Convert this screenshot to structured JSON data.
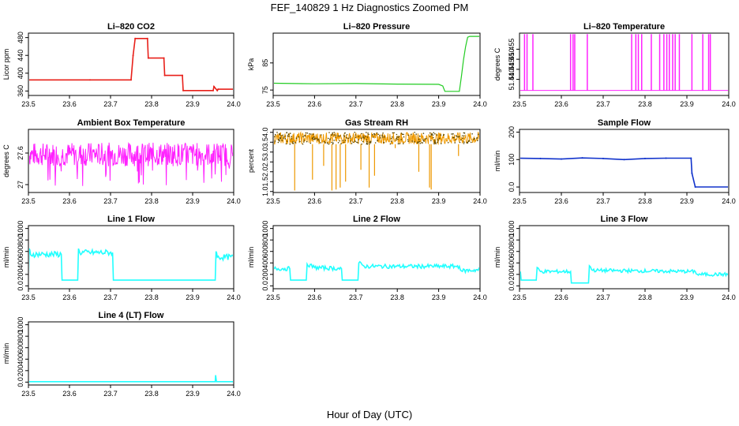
{
  "figure": {
    "title": "FEF_140829  1 Hz Diagnostics Zoomed PM",
    "xlabel": "Hour of Day (UTC)"
  },
  "colors": {
    "co2": "#e8201a",
    "pressure": "#22cc22",
    "temperature": "#ff22ff",
    "ambient": "#ff22ff",
    "rh": "#ee9900",
    "rh_points": "#554400",
    "sample_flow": "#1133cc",
    "line_flow": "#22ffff"
  },
  "chart_data": [
    {
      "id": "co2",
      "type": "line",
      "title": "Li–820 CO2",
      "ylabel": "Licor ppm",
      "xlim": [
        23.5,
        24.0
      ],
      "ylim": [
        350,
        490
      ],
      "xticks": [
        23.5,
        23.6,
        23.7,
        23.8,
        23.9,
        24.0
      ],
      "yticks": [
        360,
        400,
        440,
        480
      ],
      "color_key": "co2",
      "series": [
        {
          "x": [
            23.5,
            23.65,
            23.75,
            23.755,
            23.76,
            23.79,
            23.792,
            23.83,
            23.832,
            23.875,
            23.877,
            23.95,
            23.952,
            23.96,
            23.962,
            24.0
          ],
          "y": [
            385,
            385,
            385,
            440,
            478,
            478,
            434,
            434,
            395,
            395,
            361,
            361,
            370,
            361,
            364,
            364
          ]
        }
      ]
    },
    {
      "id": "pressure",
      "type": "line",
      "title": "Li–820 Pressure",
      "ylabel": "kPa",
      "xlim": [
        23.5,
        24.0
      ],
      "ylim": [
        73,
        96
      ],
      "xticks": [
        23.5,
        23.6,
        23.7,
        23.8,
        23.9,
        24.0
      ],
      "yticks": [
        75,
        85
      ],
      "color_key": "pressure",
      "series": [
        {
          "x": [
            23.5,
            23.6,
            23.7,
            23.8,
            23.9,
            23.91,
            23.915,
            23.95,
            23.955,
            23.96,
            23.965,
            23.97,
            23.975,
            24.0
          ],
          "y": [
            77.5,
            77.3,
            77.4,
            77.2,
            77.1,
            76.5,
            74.5,
            74.5,
            80,
            86,
            91,
            94.5,
            94.8,
            94.8
          ]
        }
      ]
    },
    {
      "id": "temperature",
      "type": "line",
      "title": "Li–820 Temperature",
      "ylabel": "degrees C",
      "xlim": [
        23.5,
        24.0
      ],
      "ylim": [
        51.432,
        51.463
      ],
      "xticks": [
        23.5,
        23.6,
        23.7,
        23.8,
        23.9,
        24.0
      ],
      "yticks": [
        51.44,
        51.445,
        51.45,
        51.455
      ],
      "color_key": "temperature",
      "baseline": 51.4345,
      "spike_top": 51.4625,
      "spikes": [
        23.512,
        23.518,
        23.532,
        23.622,
        23.628,
        23.632,
        23.662,
        23.768,
        23.778,
        23.784,
        23.792,
        23.815,
        23.835,
        23.845,
        23.852,
        23.858,
        23.866,
        23.872,
        23.882,
        23.912,
        23.938,
        23.952,
        23.956
      ]
    },
    {
      "id": "ambient",
      "type": "line",
      "title": "Ambient Box Temperature",
      "ylabel": "degrees C",
      "xlim": [
        23.5,
        24.0
      ],
      "ylim": [
        26.85,
        28.05
      ],
      "xticks": [
        23.5,
        23.6,
        23.7,
        23.8,
        23.9,
        24.0
      ],
      "yticks": [
        27.0,
        27.6
      ],
      "color_key": "ambient",
      "series": [
        {
          "x": [
            23.5,
            24.0
          ],
          "y": [
            27.55,
            27.55
          ]
        }
      ],
      "band": [
        27.35,
        27.8
      ],
      "dips_to": 26.95
    },
    {
      "id": "rh",
      "type": "line",
      "title": "Gas Stream RH",
      "ylabel": "percent",
      "xlim": [
        23.5,
        24.0
      ],
      "ylim": [
        0.95,
        4.15
      ],
      "xticks": [
        23.5,
        23.6,
        23.7,
        23.8,
        23.9,
        24.0
      ],
      "yticks": [
        1.0,
        1.5,
        2.0,
        2.5,
        3.0,
        3.5,
        4.0
      ],
      "color_key": "rh",
      "series": [
        {
          "x": [
            23.5,
            24.0
          ],
          "y": [
            3.7,
            3.7
          ]
        }
      ],
      "band": [
        3.4,
        4.0
      ],
      "dips": [
        [
          23.552,
          1.05
        ],
        [
          23.595,
          1.6
        ],
        [
          23.622,
          2.3
        ],
        [
          23.642,
          1.05
        ],
        [
          23.652,
          1.1
        ],
        [
          23.662,
          1.2
        ],
        [
          23.675,
          1.5
        ],
        [
          23.712,
          2.1
        ],
        [
          23.732,
          1.2
        ],
        [
          23.745,
          1.8
        ],
        [
          23.795,
          3.2
        ],
        [
          23.852,
          2.0
        ],
        [
          23.878,
          1.2
        ],
        [
          23.882,
          1.1
        ],
        [
          23.948,
          2.8
        ]
      ]
    },
    {
      "id": "sample_flow",
      "type": "line",
      "title": "Sample Flow",
      "ylabel": "ml/min",
      "xlim": [
        23.5,
        24.0
      ],
      "ylim": [
        -20,
        210
      ],
      "xticks": [
        23.5,
        23.6,
        23.7,
        23.8,
        23.9,
        24.0
      ],
      "yticks": [
        0,
        100,
        200
      ],
      "color_key": "sample_flow",
      "series": [
        {
          "x": [
            23.5,
            23.55,
            23.6,
            23.65,
            23.7,
            23.75,
            23.8,
            23.85,
            23.91,
            23.912,
            23.92,
            24.0
          ],
          "y": [
            105,
            104,
            102,
            106,
            104,
            100,
            104,
            105,
            105,
            50,
            0,
            0
          ]
        }
      ]
    },
    {
      "id": "line1",
      "type": "line",
      "title": "Line 1 Flow",
      "ylabel": "ml/min",
      "xlim": [
        23.5,
        24.0
      ],
      "ylim": [
        -50,
        1050
      ],
      "xticks": [
        23.5,
        23.6,
        23.7,
        23.8,
        23.9,
        24.0
      ],
      "yticks": [
        0,
        200,
        400,
        600,
        800,
        1000
      ],
      "color_key": "line_flow",
      "series": [
        {
          "x": [
            23.5,
            23.502,
            23.505,
            23.58,
            23.582,
            23.62,
            23.622,
            23.625,
            23.705,
            23.707,
            23.955,
            23.957,
            23.96,
            24.0
          ],
          "y": [
            100,
            650,
            550,
            550,
            100,
            100,
            650,
            580,
            580,
            100,
            100,
            600,
            500,
            500
          ]
        }
      ],
      "noise_on_high": 50
    },
    {
      "id": "line2",
      "type": "line",
      "title": "Line 2 Flow",
      "ylabel": "ml/min",
      "xlim": [
        23.5,
        24.0
      ],
      "ylim": [
        -50,
        1050
      ],
      "xticks": [
        23.5,
        23.6,
        23.7,
        23.8,
        23.9,
        24.0
      ],
      "yticks": [
        0,
        200,
        400,
        600,
        800,
        1000
      ],
      "color_key": "line_flow",
      "series": [
        {
          "x": [
            23.5,
            23.54,
            23.542,
            23.58,
            23.582,
            23.6,
            23.665,
            23.667,
            23.705,
            23.707,
            23.72,
            23.95,
            23.955,
            24.0
          ],
          "y": [
            300,
            300,
            100,
            100,
            380,
            320,
            300,
            100,
            100,
            400,
            340,
            340,
            260,
            280
          ]
        }
      ],
      "noise_on_high": 35
    },
    {
      "id": "line3",
      "type": "line",
      "title": "Line 3 Flow",
      "ylabel": "ml/min",
      "xlim": [
        23.5,
        24.0
      ],
      "ylim": [
        -50,
        1050
      ],
      "xticks": [
        23.5,
        23.6,
        23.7,
        23.8,
        23.9,
        24.0
      ],
      "yticks": [
        0,
        200,
        400,
        600,
        800,
        1000
      ],
      "color_key": "line_flow",
      "series": [
        {
          "x": [
            23.5,
            23.502,
            23.504,
            23.54,
            23.542,
            23.55,
            23.622,
            23.624,
            23.665,
            23.667,
            23.675,
            23.92,
            23.925,
            24.0
          ],
          "y": [
            100,
            250,
            100,
            100,
            320,
            250,
            250,
            50,
            50,
            350,
            270,
            250,
            200,
            200
          ]
        }
      ],
      "noise_on_high": 30
    },
    {
      "id": "line4",
      "type": "line",
      "title": "Line 4 (LT) Flow",
      "ylabel": "ml/min",
      "xlim": [
        23.5,
        24.0
      ],
      "ylim": [
        -50,
        1050
      ],
      "xticks": [
        23.5,
        23.6,
        23.7,
        23.8,
        23.9,
        24.0
      ],
      "yticks": [
        0,
        200,
        400,
        600,
        800,
        1000
      ],
      "color_key": "line_flow",
      "series": [
        {
          "x": [
            23.5,
            23.955,
            23.956,
            23.958,
            24.0
          ],
          "y": [
            8,
            8,
            120,
            8,
            8
          ]
        }
      ]
    }
  ]
}
